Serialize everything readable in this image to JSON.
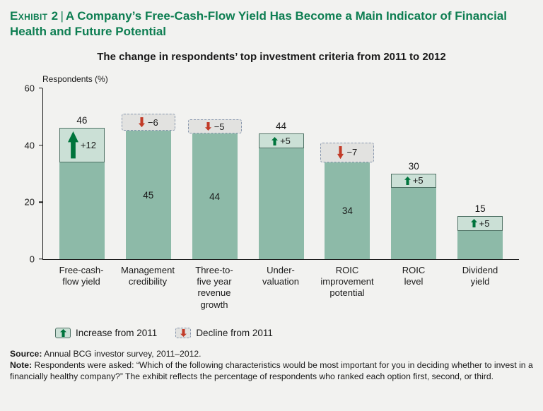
{
  "header": {
    "exhibit_label": "Exhibit 2",
    "separator": "|",
    "title": "A Company’s Free-Cash-Flow Yield Has Become a Main Indicator of Financial Health and Future Potential"
  },
  "chart_data": {
    "type": "bar",
    "title": "The change in respondents’ top investment criteria from 2011 to 2012",
    "ylabel": "Respondents (%)",
    "ylim": [
      0,
      60
    ],
    "yticks": [
      60,
      40,
      20,
      0
    ],
    "grid": false,
    "legend_position": "bottom-left",
    "bars": [
      {
        "category_lines": [
          "Free-cash-",
          "flow yield"
        ],
        "value": 46,
        "change": 12,
        "direction": "increase",
        "value_label": "46",
        "change_label": "+12"
      },
      {
        "category_lines": [
          "Management",
          "credibility"
        ],
        "value": 45,
        "change": -6,
        "direction": "decline",
        "value_label": "45",
        "change_label": "−6"
      },
      {
        "category_lines": [
          "Three-to-",
          "five year",
          "revenue",
          "growth"
        ],
        "value": 44,
        "change": -5,
        "direction": "decline",
        "value_label": "44",
        "change_label": "−5"
      },
      {
        "category_lines": [
          "Under-",
          "valuation"
        ],
        "value": 44,
        "change": 5,
        "direction": "increase",
        "value_label": "44",
        "change_label": "+5"
      },
      {
        "category_lines": [
          "ROIC",
          "improvement",
          "potential"
        ],
        "value": 34,
        "change": -7,
        "direction": "decline",
        "value_label": "34",
        "change_label": "−7"
      },
      {
        "category_lines": [
          "ROIC",
          "level"
        ],
        "value": 30,
        "change": 5,
        "direction": "increase",
        "value_label": "30",
        "change_label": "+5"
      },
      {
        "category_lines": [
          "Dividend",
          "yield"
        ],
        "value": 15,
        "change": 5,
        "direction": "increase",
        "value_label": "15",
        "change_label": "+5"
      }
    ],
    "legend": [
      {
        "type": "increase",
        "label": "Increase from 2011"
      },
      {
        "type": "decline",
        "label": "Decline from 2011"
      }
    ]
  },
  "footer": {
    "source_label": "Source:",
    "source_text": "Annual BCG investor survey, 2011–2012.",
    "note_label": "Note:",
    "note_text": "Respondents were asked: “Which of the following characteristics would be most important for you in deciding whether to invest in a financially healthy company?” The exhibit reflects the percentage of respondents who ranked each option first, second, or third."
  },
  "colors": {
    "title_green": "#0e7e52",
    "bar_fill": "#8dbaa8",
    "increase_fill": "#cbe0d6",
    "increase_border": "#4f7265",
    "decline_fill": "#e2e2e0",
    "decline_border": "#8796ad",
    "arrow_up": "#00743c",
    "arrow_down": "#c23b28",
    "axis": "#1a1a1a"
  }
}
